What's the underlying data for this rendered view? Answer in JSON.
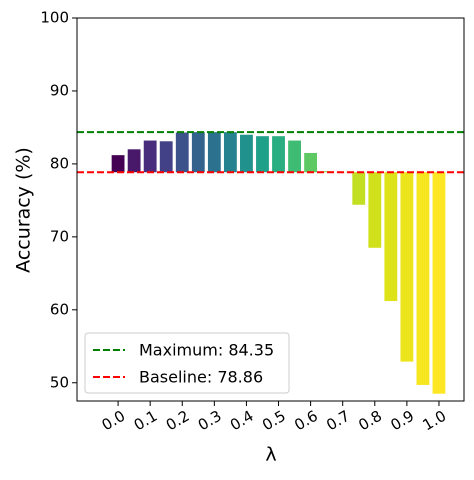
{
  "chart_data": {
    "type": "bar",
    "ylabel": "Accuracy (%)",
    "xlabel": "λ",
    "x": [
      0.0,
      0.05,
      0.1,
      0.15,
      0.2,
      0.25,
      0.3,
      0.35,
      0.4,
      0.45,
      0.5,
      0.55,
      0.6,
      0.65,
      0.7,
      0.75,
      0.8,
      0.85,
      0.9,
      0.95,
      1.0
    ],
    "values": [
      81.2,
      82.0,
      83.2,
      83.1,
      84.3,
      84.35,
      84.35,
      84.35,
      84.0,
      83.8,
      83.8,
      83.2,
      81.5,
      79.0,
      78.9,
      74.4,
      68.5,
      61.2,
      52.9,
      49.7,
      48.5
    ],
    "colors": [
      "#440154",
      "#48186a",
      "#472d7b",
      "#424086",
      "#3b528b",
      "#33638d",
      "#2c728e",
      "#26828e",
      "#21918c",
      "#1fa088",
      "#28ae80",
      "#3fbc73",
      "#5ec962",
      "#84d44b",
      "#addc30",
      "#c2df23",
      "#d0e11c",
      "#dde318",
      "#ece51b",
      "#f6e620",
      "#fde725"
    ],
    "ylim": [
      47.5,
      100
    ],
    "yticks": [
      50,
      60,
      70,
      80,
      90,
      100
    ],
    "xlim": [
      -0.128,
      1.078
    ],
    "xticks": [
      {
        "value": 0.0,
        "label": "0.0"
      },
      0.1,
      0.2,
      0.3,
      0.4,
      0.5,
      0.6,
      0.7,
      0.8,
      0.9,
      {
        "value": 1.0,
        "label": "1.0"
      }
    ],
    "reference_lines": [
      {
        "name": "Maximum",
        "value": 84.35,
        "label": "Maximum: 84.35",
        "color": "#008000"
      },
      {
        "name": "Baseline",
        "value": 78.86,
        "label": "Baseline: 78.86",
        "color": "#ff0000"
      }
    ],
    "legend": "lower left"
  }
}
